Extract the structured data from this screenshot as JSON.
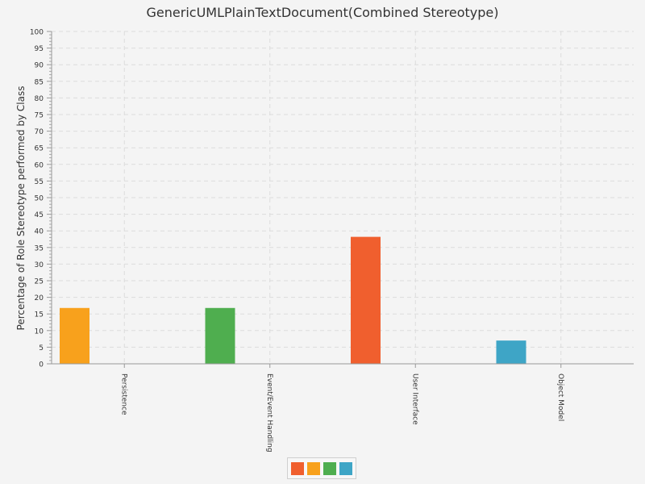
{
  "chart_data": {
    "type": "bar",
    "title": "GenericUMLPlainTextDocument(Combined Stereotype)",
    "ylabel": "Percentage of Role Stereotype performed by Class",
    "xlabel": "",
    "ylim": [
      0,
      100
    ],
    "yticks": [
      0,
      5,
      10,
      15,
      20,
      25,
      30,
      35,
      40,
      45,
      50,
      55,
      60,
      65,
      70,
      75,
      80,
      85,
      90,
      95,
      100
    ],
    "categories": [
      "Persistence",
      "Event/Event Handling",
      "User Interface",
      "Object Model"
    ],
    "bars": [
      {
        "category": "Persistence",
        "value": 16.8,
        "color": "#f8a11c"
      },
      {
        "category": "Event/Event Handling",
        "value": 16.8,
        "color": "#4fae4f"
      },
      {
        "category": "User Interface",
        "value": 38.2,
        "color": "#f05f2e"
      },
      {
        "category": "Object Model",
        "value": 7.0,
        "color": "#3ea5c6"
      }
    ],
    "grid": true,
    "legend": {
      "placement": "bottom-center",
      "swatches": [
        "#f05f2e",
        "#f8a11c",
        "#4fae4f",
        "#3ea5c6"
      ]
    }
  }
}
